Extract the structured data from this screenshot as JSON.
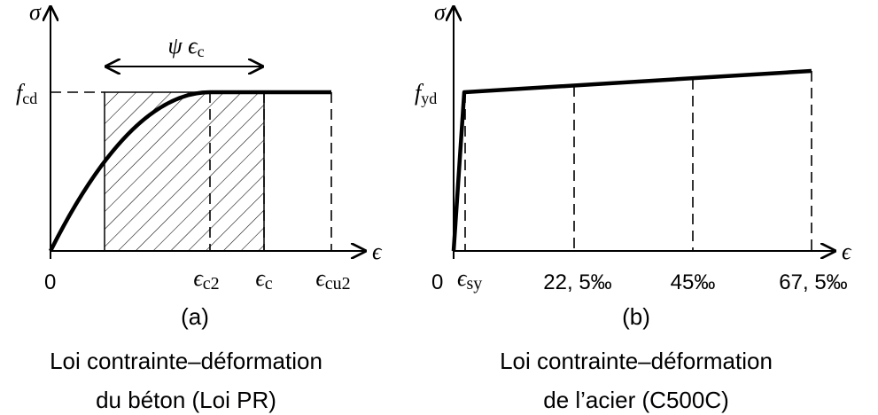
{
  "left": {
    "y_axis": "σ",
    "x_axis": "ϵ",
    "level": {
      "symbol": "f",
      "subscript": "cd"
    },
    "width_label": {
      "prefix": "ψ ϵ",
      "subscript": "c"
    },
    "origin": "0",
    "x_labels": [
      {
        "symbol": "ϵ",
        "subscript": "c2"
      },
      {
        "symbol": "ϵ",
        "subscript": "c"
      },
      {
        "symbol": "ϵ",
        "subscript": "cu2"
      }
    ],
    "tag": "(a)",
    "caption": [
      "Loi contrainte–déformation",
      "du béton (Loi PR)"
    ]
  },
  "right": {
    "y_axis": "σ",
    "x_axis": "ϵ",
    "level": {
      "symbol": "f",
      "subscript": "yd"
    },
    "origin": "0",
    "yield_label": {
      "symbol": "ϵ",
      "subscript": "sy"
    },
    "x_labels": [
      "22, 5‰",
      "45‰",
      "67, 5‰"
    ],
    "tag": "(b)",
    "caption": [
      "Loi contrainte–déformation",
      "de l’acier (C500C)"
    ]
  }
}
